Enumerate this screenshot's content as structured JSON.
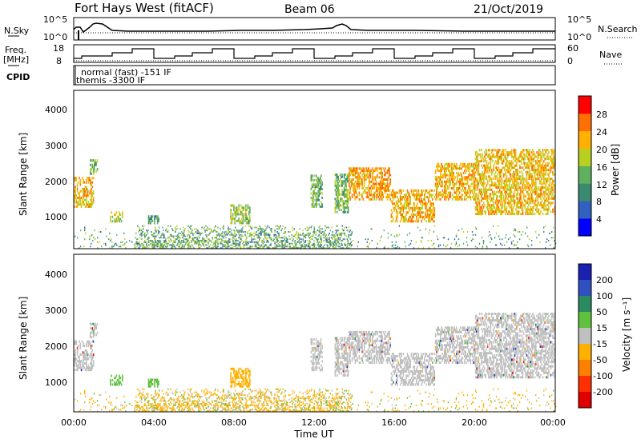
{
  "header": {
    "radar": "Fort Hays West (fitACF)",
    "beam": "Beam 06",
    "date": "21/Oct/2019"
  },
  "noise_panel": {
    "left_label": "N.Sky",
    "left_ticks": [
      "10^5",
      "10^0"
    ],
    "right_label": "N.Search",
    "right_ticks": [
      "10^5",
      "10^0"
    ]
  },
  "freq_panel": {
    "left_label_1": "Freq.",
    "left_label_2": "[MHz]",
    "left_ticks": [
      "18",
      "8"
    ],
    "right_label": "Nave",
    "right_ticks": [
      "60",
      "0"
    ]
  },
  "cpid": {
    "label": "CPID",
    "line1": "normal (fast) -151 IF",
    "line2": "themis -3300 IF"
  },
  "x_axis": {
    "label": "Time UT",
    "ticks": [
      "00:00",
      "04:00",
      "08:00",
      "12:00",
      "16:00",
      "20:00",
      "00:00"
    ]
  },
  "y_axis": {
    "label": "Slant Range [km]",
    "ticks": [
      "1000",
      "2000",
      "3000",
      "4000"
    ]
  },
  "power_colorbar": {
    "label": "Power [dB]",
    "ticks": [
      "4",
      "8",
      "12",
      "16",
      "20",
      "24",
      "28"
    ],
    "colors": [
      "#0000ff",
      "#3060c0",
      "#3a8a70",
      "#60b060",
      "#b8d020",
      "#ffb000",
      "#ff7000",
      "#ff0000"
    ]
  },
  "velocity_colorbar": {
    "label": "Velocity [m s⁻¹]",
    "ticks": [
      "200",
      "100",
      "50",
      "15",
      "-15",
      "-50",
      "-100",
      "-200"
    ],
    "colors": [
      "#1a20b0",
      "#3050c0",
      "#2a8a60",
      "#60c040",
      "#c0c0c0",
      "#ffb000",
      "#ff8000",
      "#ff3000",
      "#e00000"
    ]
  },
  "chart_data": {
    "type": "heatmap",
    "x_unit": "hours UT",
    "xlim": [
      0,
      24
    ],
    "ylim": [
      180,
      4500
    ],
    "power_scatter_regions": [
      {
        "t0": 0.0,
        "t1": 1.0,
        "r0": 1300,
        "r1": 2100,
        "p": 22
      },
      {
        "t0": 0.8,
        "t1": 1.2,
        "r0": 2200,
        "r1": 2600,
        "p": 14
      },
      {
        "t0": 1.8,
        "t1": 2.4,
        "r0": 900,
        "r1": 1200,
        "p": 18
      },
      {
        "t0": 3.7,
        "t1": 4.2,
        "r0": 850,
        "r1": 1050,
        "p": 12
      },
      {
        "t0": 7.8,
        "t1": 8.8,
        "r0": 850,
        "r1": 1350,
        "p": 16
      },
      {
        "t0": 11.8,
        "t1": 12.4,
        "r0": 1300,
        "r1": 2200,
        "p": 14
      },
      {
        "t0": 13.0,
        "t1": 13.7,
        "r0": 1150,
        "r1": 2200,
        "p": 14
      },
      {
        "t0": 13.7,
        "t1": 15.8,
        "r0": 1500,
        "r1": 2400,
        "p": 23
      },
      {
        "t0": 15.8,
        "t1": 18.0,
        "r0": 900,
        "r1": 1800,
        "p": 22
      },
      {
        "t0": 18.0,
        "t1": 20.0,
        "r0": 1500,
        "r1": 2500,
        "p": 22
      },
      {
        "t0": 20.0,
        "t1": 24.0,
        "r0": 1100,
        "r1": 2900,
        "p": 21
      }
    ],
    "ground_scatter_band": {
      "t0": 3.0,
      "t1": 13.8,
      "r0": 180,
      "r1": 600,
      "v": -30
    }
  }
}
